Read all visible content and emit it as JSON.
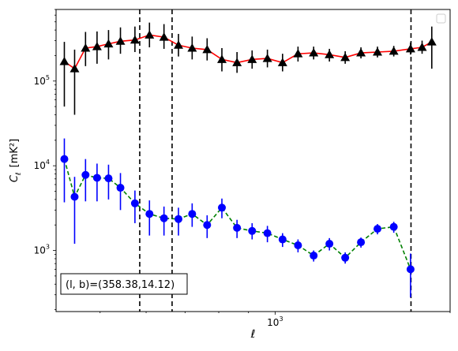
{
  "chart_data": {
    "type": "scatter",
    "xlabel": "ℓ",
    "ylabel_main": "C",
    "ylabel_sub": "ℓ",
    "ylabel_unit": "[mK²]",
    "xscale": "log",
    "yscale": "log",
    "xlim": [
      420,
      2000
    ],
    "ylim": [
      190,
      700000
    ],
    "x_tick_labels": [
      {
        "base": "10",
        "exp": "3",
        "value": 1000
      }
    ],
    "y_tick_labels": [
      {
        "base": "10",
        "exp": "3",
        "value": 1000
      },
      {
        "base": "10",
        "exp": "4",
        "value": 10000
      },
      {
        "base": "10",
        "exp": "5",
        "value": 100000
      }
    ],
    "vlines": [
      585,
      665,
      1713
    ],
    "annotation": "(l, b)=(358.38,14.12)",
    "legend": "empty box, top-right",
    "series": [
      {
        "marker": "triangle",
        "marker_color": "#000000",
        "line_color": "#ff0000",
        "line_style": "solid",
        "points": [
          {
            "x": 434,
            "y": 170000,
            "lo": 50000,
            "hi": 290000
          },
          {
            "x": 452,
            "y": 140000,
            "lo": 40000,
            "hi": 235000
          },
          {
            "x": 472,
            "y": 245000,
            "lo": 150000,
            "hi": 380000
          },
          {
            "x": 494,
            "y": 255000,
            "lo": 160000,
            "hi": 385000
          },
          {
            "x": 517,
            "y": 275000,
            "lo": 180000,
            "hi": 400000
          },
          {
            "x": 542,
            "y": 295000,
            "lo": 210000,
            "hi": 430000
          },
          {
            "x": 574,
            "y": 305000,
            "lo": 220000,
            "hi": 440000
          },
          {
            "x": 608,
            "y": 350000,
            "lo": 250000,
            "hi": 490000
          },
          {
            "x": 644,
            "y": 330000,
            "lo": 240000,
            "hi": 470000
          },
          {
            "x": 682,
            "y": 265000,
            "lo": 195000,
            "hi": 360000
          },
          {
            "x": 720,
            "y": 245000,
            "lo": 180000,
            "hi": 335000
          },
          {
            "x": 764,
            "y": 235000,
            "lo": 175000,
            "hi": 320000
          },
          {
            "x": 810,
            "y": 180000,
            "lo": 130000,
            "hi": 245000
          },
          {
            "x": 860,
            "y": 165000,
            "lo": 125000,
            "hi": 220000
          },
          {
            "x": 913,
            "y": 180000,
            "lo": 140000,
            "hi": 230000
          },
          {
            "x": 970,
            "y": 185000,
            "lo": 145000,
            "hi": 235000
          },
          {
            "x": 1030,
            "y": 165000,
            "lo": 130000,
            "hi": 210000
          },
          {
            "x": 1095,
            "y": 210000,
            "lo": 170000,
            "hi": 255000
          },
          {
            "x": 1165,
            "y": 215000,
            "lo": 180000,
            "hi": 255000
          },
          {
            "x": 1240,
            "y": 205000,
            "lo": 170000,
            "hi": 240000
          },
          {
            "x": 1320,
            "y": 190000,
            "lo": 160000,
            "hi": 225000
          },
          {
            "x": 1405,
            "y": 215000,
            "lo": 185000,
            "hi": 250000
          },
          {
            "x": 1500,
            "y": 220000,
            "lo": 190000,
            "hi": 255000
          },
          {
            "x": 1600,
            "y": 225000,
            "lo": 195000,
            "hi": 260000
          },
          {
            "x": 1710,
            "y": 240000,
            "lo": 205000,
            "hi": 285000
          },
          {
            "x": 1790,
            "y": 250000,
            "lo": 210000,
            "hi": 300000
          },
          {
            "x": 1860,
            "y": 290000,
            "lo": 140000,
            "hi": 440000
          }
        ]
      },
      {
        "marker": "circle",
        "marker_color": "#0000ff",
        "line_color": "#008000",
        "line_style": "dashed",
        "points": [
          {
            "x": 434,
            "y": 12000,
            "lo": 3700,
            "hi": 21000
          },
          {
            "x": 452,
            "y": 4300,
            "lo": 1200,
            "hi": 7400
          },
          {
            "x": 472,
            "y": 7800,
            "lo": 3800,
            "hi": 12000
          },
          {
            "x": 494,
            "y": 7200,
            "lo": 3800,
            "hi": 10600
          },
          {
            "x": 517,
            "y": 7100,
            "lo": 4000,
            "hi": 10300
          },
          {
            "x": 542,
            "y": 5500,
            "lo": 3000,
            "hi": 8200
          },
          {
            "x": 574,
            "y": 3600,
            "lo": 2100,
            "hi": 5100
          },
          {
            "x": 608,
            "y": 2700,
            "lo": 1500,
            "hi": 3900
          },
          {
            "x": 644,
            "y": 2400,
            "lo": 1500,
            "hi": 3300
          },
          {
            "x": 682,
            "y": 2350,
            "lo": 1500,
            "hi": 3200
          },
          {
            "x": 720,
            "y": 2700,
            "lo": 1900,
            "hi": 3600
          },
          {
            "x": 764,
            "y": 2000,
            "lo": 1400,
            "hi": 2600
          },
          {
            "x": 810,
            "y": 3200,
            "lo": 2400,
            "hi": 4100
          },
          {
            "x": 860,
            "y": 1850,
            "lo": 1400,
            "hi": 2300
          },
          {
            "x": 913,
            "y": 1700,
            "lo": 1350,
            "hi": 2100
          },
          {
            "x": 970,
            "y": 1600,
            "lo": 1250,
            "hi": 1950
          },
          {
            "x": 1030,
            "y": 1350,
            "lo": 1100,
            "hi": 1600
          },
          {
            "x": 1095,
            "y": 1150,
            "lo": 950,
            "hi": 1350
          },
          {
            "x": 1165,
            "y": 870,
            "lo": 740,
            "hi": 1000
          },
          {
            "x": 1240,
            "y": 1200,
            "lo": 1000,
            "hi": 1400
          },
          {
            "x": 1320,
            "y": 820,
            "lo": 700,
            "hi": 950
          },
          {
            "x": 1405,
            "y": 1250,
            "lo": 1080,
            "hi": 1420
          },
          {
            "x": 1500,
            "y": 1800,
            "lo": 1550,
            "hi": 2050
          },
          {
            "x": 1600,
            "y": 1900,
            "lo": 1620,
            "hi": 2180
          },
          {
            "x": 1710,
            "y": 600,
            "lo": 280,
            "hi": 920
          }
        ]
      }
    ]
  }
}
